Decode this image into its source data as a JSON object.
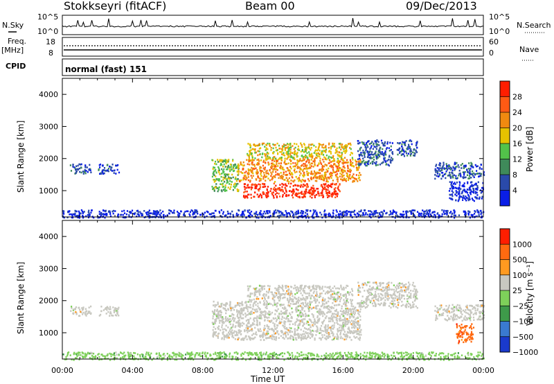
{
  "header": {
    "station": "Stokkseyri (fitACF)",
    "beam": "Beam 00",
    "date": "09/Dec/2013"
  },
  "small_panels": {
    "nsky_label": "N.Sky",
    "nsky_ticks": [
      "10^5",
      "10^0"
    ],
    "nsearch_label": "N.Search",
    "nsearch_ticks": [
      "10^5",
      "10^0"
    ],
    "freq_label_1": "Freq.",
    "freq_label_2": "[MHz]",
    "freq_ticks": [
      "18",
      "8"
    ],
    "nave_label": "Nave",
    "nave_ticks": [
      "60",
      "0"
    ],
    "cpid_label": "CPID",
    "cpid_text": "normal (fast) 151"
  },
  "chart_data": [
    {
      "type": "heatmap",
      "name": "power",
      "ylabel": "Slant Range [km]",
      "yticks": [
        "4000",
        "3000",
        "2000",
        "1000"
      ],
      "ylim": [
        180,
        4500
      ],
      "colorbar_label": "Power [dB]",
      "colorbar_ticks": [
        "28",
        "24",
        "20",
        "16",
        "12",
        "8",
        "4"
      ],
      "colorbar_colors": [
        "#0a1ee6",
        "#2a4aaa",
        "#3f8a5a",
        "#52c24a",
        "#e6c200",
        "#f08a10",
        "#ff5a14",
        "#ff1e00"
      ],
      "regions": [
        {
          "x0": 10.3,
          "x1": 15.8,
          "y0": 800,
          "y1": 1250,
          "level": 7
        },
        {
          "x0": 10.0,
          "x1": 17.0,
          "y0": 1300,
          "y1": 2000,
          "level": 5
        },
        {
          "x0": 10.5,
          "x1": 16.5,
          "y0": 2000,
          "y1": 2500,
          "level": 4
        },
        {
          "x0": 8.5,
          "x1": 10.0,
          "y0": 1000,
          "y1": 2000,
          "level": 3
        },
        {
          "x0": 16.8,
          "x1": 18.8,
          "y0": 1800,
          "y1": 2600,
          "level": 1
        },
        {
          "x0": 19.0,
          "x1": 20.2,
          "y0": 2100,
          "y1": 2600,
          "level": 1
        },
        {
          "x0": 21.2,
          "x1": 24.0,
          "y0": 1400,
          "y1": 1900,
          "level": 1
        },
        {
          "x0": 22.0,
          "x1": 24.0,
          "y0": 700,
          "y1": 1300,
          "level": 0
        },
        {
          "x0": 0.4,
          "x1": 1.6,
          "y0": 1550,
          "y1": 1850,
          "level": 1
        },
        {
          "x0": 2.0,
          "x1": 3.2,
          "y0": 1550,
          "y1": 1850,
          "level": 1
        },
        {
          "x0": 0.0,
          "x1": 24.0,
          "y0": 180,
          "y1": 420,
          "level": 0
        }
      ]
    },
    {
      "type": "heatmap",
      "name": "velocity",
      "ylabel": "Slant Range [km]",
      "yticks": [
        "4000",
        "3000",
        "2000",
        "1000"
      ],
      "ylim": [
        180,
        4500
      ],
      "colorbar_label": "Velocity [m s⁻¹]",
      "colorbar_ticks": [
        "1000",
        "500",
        "100",
        "25",
        "−25",
        "−100",
        "−500",
        "−1000"
      ],
      "colorbar_colors": [
        "#1a3acc",
        "#3a7ad0",
        "#3e9a4a",
        "#7ed05a",
        "#c8c8c0",
        "#ff9a20",
        "#ff6a10",
        "#ff1e00"
      ],
      "xlabel": "Time UT",
      "xticks": [
        "00:00",
        "04:00",
        "08:00",
        "12:00",
        "16:00",
        "20:00",
        "00:00"
      ],
      "regions": [
        {
          "x0": 8.5,
          "x1": 17.0,
          "y0": 800,
          "y1": 2000,
          "level": 4
        },
        {
          "x0": 10.5,
          "x1": 16.5,
          "y0": 2000,
          "y1": 2500,
          "level": 4
        },
        {
          "x0": 16.8,
          "x1": 20.2,
          "y0": 1800,
          "y1": 2600,
          "level": 4
        },
        {
          "x0": 21.2,
          "x1": 24.0,
          "y0": 1400,
          "y1": 1900,
          "level": 4
        },
        {
          "x0": 22.4,
          "x1": 23.4,
          "y0": 700,
          "y1": 1300,
          "level": 6
        },
        {
          "x0": 0.4,
          "x1": 1.6,
          "y0": 1550,
          "y1": 1850,
          "level": 4
        },
        {
          "x0": 2.0,
          "x1": 3.2,
          "y0": 1550,
          "y1": 1850,
          "level": 4
        },
        {
          "x0": 0.0,
          "x1": 24.0,
          "y0": 180,
          "y1": 420,
          "level": 3
        }
      ]
    }
  ]
}
